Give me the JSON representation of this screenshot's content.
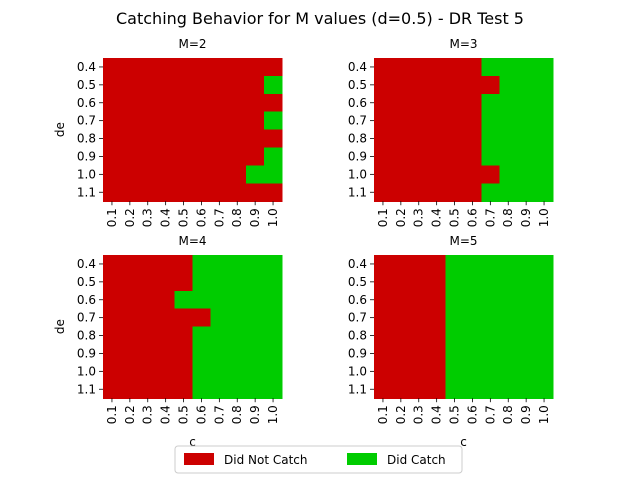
{
  "chart_data": {
    "type": "heatmap",
    "title": "Catching Behavior for M values (d=0.5) - DR Test 5",
    "xlabel": "c",
    "ylabel": "de",
    "x_categories": [
      "0.1",
      "0.2",
      "0.3",
      "0.4",
      "0.5",
      "0.6",
      "0.7",
      "0.8",
      "0.9",
      "1.0"
    ],
    "y_categories": [
      "0.4",
      "0.5",
      "0.6",
      "0.7",
      "0.8",
      "0.9",
      "1.0",
      "1.1"
    ],
    "colors": {
      "not_catch": "#cc0000",
      "catch": "#00cc00"
    },
    "legend": {
      "position": "bottom-center",
      "entries": [
        {
          "label": "Did Not Catch",
          "value": 0
        },
        {
          "label": "Did Catch",
          "value": 1
        }
      ]
    },
    "panels": [
      {
        "title": "M=2",
        "grid": [
          [
            0,
            0,
            0,
            0,
            0,
            0,
            0,
            0,
            0,
            0
          ],
          [
            0,
            0,
            0,
            0,
            0,
            0,
            0,
            0,
            0,
            1
          ],
          [
            0,
            0,
            0,
            0,
            0,
            0,
            0,
            0,
            0,
            0
          ],
          [
            0,
            0,
            0,
            0,
            0,
            0,
            0,
            0,
            0,
            1
          ],
          [
            0,
            0,
            0,
            0,
            0,
            0,
            0,
            0,
            0,
            0
          ],
          [
            0,
            0,
            0,
            0,
            0,
            0,
            0,
            0,
            0,
            1
          ],
          [
            0,
            0,
            0,
            0,
            0,
            0,
            0,
            0,
            1,
            1
          ],
          [
            0,
            0,
            0,
            0,
            0,
            0,
            0,
            0,
            0,
            0
          ]
        ]
      },
      {
        "title": "M=3",
        "grid": [
          [
            0,
            0,
            0,
            0,
            0,
            0,
            1,
            1,
            1,
            1
          ],
          [
            0,
            0,
            0,
            0,
            0,
            0,
            0,
            1,
            1,
            1
          ],
          [
            0,
            0,
            0,
            0,
            0,
            0,
            1,
            1,
            1,
            1
          ],
          [
            0,
            0,
            0,
            0,
            0,
            0,
            1,
            1,
            1,
            1
          ],
          [
            0,
            0,
            0,
            0,
            0,
            0,
            1,
            1,
            1,
            1
          ],
          [
            0,
            0,
            0,
            0,
            0,
            0,
            1,
            1,
            1,
            1
          ],
          [
            0,
            0,
            0,
            0,
            0,
            0,
            0,
            1,
            1,
            1
          ],
          [
            0,
            0,
            0,
            0,
            0,
            0,
            1,
            1,
            1,
            1
          ]
        ]
      },
      {
        "title": "M=4",
        "grid": [
          [
            0,
            0,
            0,
            0,
            0,
            1,
            1,
            1,
            1,
            1
          ],
          [
            0,
            0,
            0,
            0,
            0,
            1,
            1,
            1,
            1,
            1
          ],
          [
            0,
            0,
            0,
            0,
            1,
            1,
            1,
            1,
            1,
            1
          ],
          [
            0,
            0,
            0,
            0,
            0,
            0,
            1,
            1,
            1,
            1
          ],
          [
            0,
            0,
            0,
            0,
            0,
            1,
            1,
            1,
            1,
            1
          ],
          [
            0,
            0,
            0,
            0,
            0,
            1,
            1,
            1,
            1,
            1
          ],
          [
            0,
            0,
            0,
            0,
            0,
            1,
            1,
            1,
            1,
            1
          ],
          [
            0,
            0,
            0,
            0,
            0,
            1,
            1,
            1,
            1,
            1
          ]
        ]
      },
      {
        "title": "M=5",
        "grid": [
          [
            0,
            0,
            0,
            0,
            1,
            1,
            1,
            1,
            1,
            1
          ],
          [
            0,
            0,
            0,
            0,
            1,
            1,
            1,
            1,
            1,
            1
          ],
          [
            0,
            0,
            0,
            0,
            1,
            1,
            1,
            1,
            1,
            1
          ],
          [
            0,
            0,
            0,
            0,
            1,
            1,
            1,
            1,
            1,
            1
          ],
          [
            0,
            0,
            0,
            0,
            1,
            1,
            1,
            1,
            1,
            1
          ],
          [
            0,
            0,
            0,
            0,
            1,
            1,
            1,
            1,
            1,
            1
          ],
          [
            0,
            0,
            0,
            0,
            1,
            1,
            1,
            1,
            1,
            1
          ],
          [
            0,
            0,
            0,
            0,
            1,
            1,
            1,
            1,
            1,
            1
          ]
        ]
      }
    ]
  }
}
